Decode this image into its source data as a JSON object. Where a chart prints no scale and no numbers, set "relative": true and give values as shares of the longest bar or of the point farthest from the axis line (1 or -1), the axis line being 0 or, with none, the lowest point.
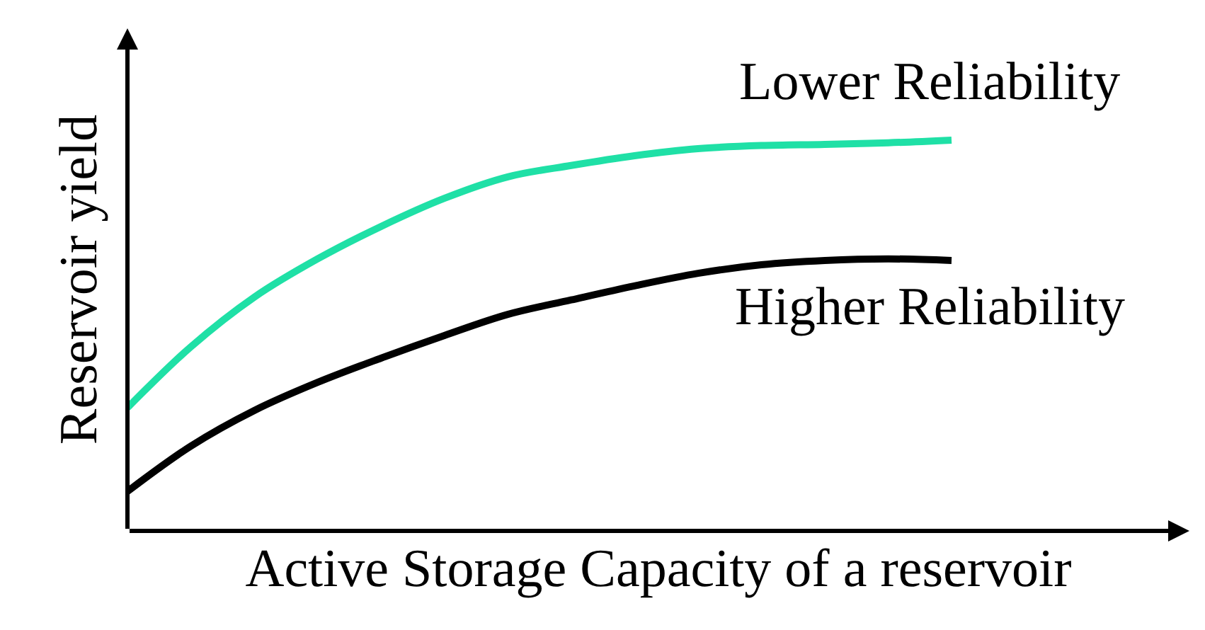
{
  "chart_data": {
    "type": "line",
    "relative": true,
    "xlabel": "Active Storage Capacity of a reservoir",
    "ylabel": "Reservoir yield",
    "categories": [
      null,
      null,
      null,
      null,
      null,
      null,
      null,
      null,
      null,
      null,
      null,
      null,
      null,
      null
    ],
    "legend": false,
    "marker": "none",
    "line_style": "solid",
    "series": [
      {
        "name": "Lower Reliability",
        "color": "#1fe0a6",
        "values": [
          0.315,
          0.471,
          0.598,
          0.696,
          0.779,
          0.851,
          0.906,
          0.935,
          0.96,
          0.978,
          0.986,
          0.989,
          0.993,
          1.0
        ]
      },
      {
        "name": "Higher Reliability",
        "color": "#000000",
        "values": [
          0.101,
          0.217,
          0.308,
          0.38,
          0.442,
          0.5,
          0.554,
          0.591,
          0.627,
          0.659,
          0.681,
          0.692,
          0.696,
          0.692
        ]
      }
    ]
  }
}
